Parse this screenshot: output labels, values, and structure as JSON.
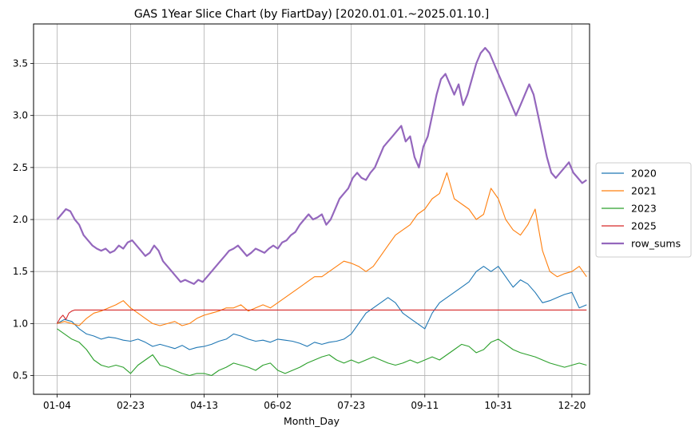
{
  "chart_data": {
    "type": "line",
    "title": "GAS 1Year Slice Chart (by FiartDay) [2020.01.01.~2025.01.10.]",
    "xlabel": "Month_Day",
    "ylabel": "",
    "x_tick_labels": [
      "01-04",
      "02-23",
      "04-13",
      "06-02",
      "07-23",
      "09-11",
      "10-31",
      "12-20"
    ],
    "x_tick_days": [
      0,
      50,
      100,
      150,
      200,
      250,
      300,
      350
    ],
    "xlim": [
      -16,
      362
    ],
    "ylim": [
      0.32,
      3.88
    ],
    "y_ticks": [
      0.5,
      1.0,
      1.5,
      2.0,
      2.5,
      3.0,
      3.5
    ],
    "y_tick_labels": [
      "0.5",
      "1.0",
      "1.5",
      "2.0",
      "2.5",
      "3.0",
      "3.5"
    ],
    "grid": true,
    "legend_position": "center-right",
    "series": [
      {
        "name": "2020",
        "color": "#1f77b4",
        "x": [
          0,
          5,
          10,
          15,
          20,
          25,
          30,
          35,
          40,
          45,
          50,
          55,
          60,
          65,
          70,
          75,
          80,
          85,
          90,
          95,
          100,
          105,
          110,
          115,
          120,
          125,
          130,
          135,
          140,
          145,
          150,
          155,
          160,
          165,
          170,
          175,
          180,
          185,
          190,
          195,
          200,
          205,
          210,
          215,
          220,
          225,
          230,
          235,
          240,
          245,
          250,
          255,
          260,
          265,
          270,
          275,
          280,
          285,
          290,
          295,
          300,
          305,
          310,
          315,
          320,
          325,
          330,
          335,
          340,
          345,
          350,
          355,
          360
        ],
        "y": [
          1.0,
          1.04,
          1.02,
          0.95,
          0.9,
          0.88,
          0.85,
          0.87,
          0.86,
          0.84,
          0.83,
          0.85,
          0.82,
          0.78,
          0.8,
          0.78,
          0.76,
          0.79,
          0.75,
          0.77,
          0.78,
          0.8,
          0.83,
          0.85,
          0.9,
          0.88,
          0.85,
          0.83,
          0.84,
          0.82,
          0.85,
          0.84,
          0.83,
          0.81,
          0.78,
          0.82,
          0.8,
          0.82,
          0.83,
          0.85,
          0.9,
          1.0,
          1.1,
          1.15,
          1.2,
          1.25,
          1.2,
          1.1,
          1.05,
          1.0,
          0.95,
          1.1,
          1.2,
          1.25,
          1.3,
          1.35,
          1.4,
          1.5,
          1.55,
          1.5,
          1.55,
          1.45,
          1.35,
          1.42,
          1.38,
          1.3,
          1.2,
          1.22,
          1.25,
          1.28,
          1.3,
          1.15,
          1.18
        ]
      },
      {
        "name": "2021",
        "color": "#ff7f0e",
        "x": [
          0,
          5,
          10,
          15,
          20,
          25,
          30,
          35,
          40,
          45,
          50,
          55,
          60,
          65,
          70,
          75,
          80,
          85,
          90,
          95,
          100,
          105,
          110,
          115,
          120,
          125,
          130,
          135,
          140,
          145,
          150,
          155,
          160,
          165,
          170,
          175,
          180,
          185,
          190,
          195,
          200,
          205,
          210,
          215,
          220,
          225,
          230,
          235,
          240,
          245,
          250,
          255,
          260,
          265,
          270,
          275,
          280,
          285,
          290,
          295,
          300,
          305,
          310,
          315,
          320,
          325,
          330,
          335,
          340,
          345,
          350,
          355,
          360
        ],
        "y": [
          1.0,
          1.02,
          1.0,
          0.98,
          1.05,
          1.1,
          1.12,
          1.15,
          1.18,
          1.22,
          1.15,
          1.1,
          1.05,
          1.0,
          0.98,
          1.0,
          1.02,
          0.98,
          1.0,
          1.05,
          1.08,
          1.1,
          1.12,
          1.15,
          1.15,
          1.18,
          1.12,
          1.15,
          1.18,
          1.15,
          1.2,
          1.25,
          1.3,
          1.35,
          1.4,
          1.45,
          1.45,
          1.5,
          1.55,
          1.6,
          1.58,
          1.55,
          1.5,
          1.55,
          1.65,
          1.75,
          1.85,
          1.9,
          1.95,
          2.05,
          2.1,
          2.2,
          2.25,
          2.45,
          2.2,
          2.15,
          2.1,
          2.0,
          2.05,
          2.3,
          2.2,
          2.0,
          1.9,
          1.85,
          1.95,
          2.1,
          1.7,
          1.5,
          1.45,
          1.48,
          1.5,
          1.55,
          1.45
        ]
      },
      {
        "name": "2023",
        "color": "#2ca02c",
        "x": [
          0,
          5,
          10,
          15,
          20,
          25,
          30,
          35,
          40,
          45,
          50,
          55,
          60,
          65,
          70,
          75,
          80,
          85,
          90,
          95,
          100,
          105,
          110,
          115,
          120,
          125,
          130,
          135,
          140,
          145,
          150,
          155,
          160,
          165,
          170,
          175,
          180,
          185,
          190,
          195,
          200,
          205,
          210,
          215,
          220,
          225,
          230,
          235,
          240,
          245,
          250,
          255,
          260,
          265,
          270,
          275,
          280,
          285,
          290,
          295,
          300,
          305,
          310,
          315,
          320,
          325,
          330,
          335,
          340,
          345,
          350,
          355,
          360
        ],
        "y": [
          0.95,
          0.9,
          0.85,
          0.82,
          0.75,
          0.65,
          0.6,
          0.58,
          0.6,
          0.58,
          0.52,
          0.6,
          0.65,
          0.7,
          0.6,
          0.58,
          0.55,
          0.52,
          0.5,
          0.52,
          0.52,
          0.5,
          0.55,
          0.58,
          0.62,
          0.6,
          0.58,
          0.55,
          0.6,
          0.62,
          0.55,
          0.52,
          0.55,
          0.58,
          0.62,
          0.65,
          0.68,
          0.7,
          0.65,
          0.62,
          0.65,
          0.62,
          0.65,
          0.68,
          0.65,
          0.62,
          0.6,
          0.62,
          0.65,
          0.62,
          0.65,
          0.68,
          0.65,
          0.7,
          0.75,
          0.8,
          0.78,
          0.72,
          0.75,
          0.82,
          0.85,
          0.8,
          0.75,
          0.72,
          0.7,
          0.68,
          0.65,
          0.62,
          0.6,
          0.58,
          0.6,
          0.62,
          0.6
        ]
      },
      {
        "name": "2025",
        "color": "#d62728",
        "x": [
          0,
          2,
          4,
          6,
          8,
          10,
          12,
          15,
          360
        ],
        "y": [
          1.0,
          1.05,
          1.08,
          1.04,
          1.1,
          1.12,
          1.13,
          1.13,
          1.13
        ]
      },
      {
        "name": "row_sums",
        "color": "#9467bd",
        "x": [
          0,
          3,
          6,
          9,
          12,
          15,
          18,
          21,
          24,
          27,
          30,
          33,
          36,
          39,
          42,
          45,
          48,
          51,
          54,
          57,
          60,
          63,
          66,
          69,
          72,
          75,
          78,
          81,
          84,
          87,
          90,
          93,
          96,
          99,
          102,
          105,
          108,
          111,
          114,
          117,
          120,
          123,
          126,
          129,
          132,
          135,
          138,
          141,
          144,
          147,
          150,
          153,
          156,
          159,
          162,
          165,
          168,
          171,
          174,
          177,
          180,
          183,
          186,
          189,
          192,
          195,
          198,
          201,
          204,
          207,
          210,
          213,
          216,
          219,
          222,
          225,
          228,
          231,
          234,
          237,
          240,
          243,
          246,
          249,
          252,
          255,
          258,
          261,
          264,
          267,
          270,
          273,
          276,
          279,
          282,
          285,
          288,
          291,
          294,
          297,
          300,
          303,
          306,
          309,
          312,
          315,
          318,
          321,
          324,
          327,
          330,
          333,
          336,
          339,
          342,
          345,
          348,
          351,
          354,
          357,
          360
        ],
        "y": [
          2.0,
          2.05,
          2.1,
          2.08,
          2.0,
          1.95,
          1.85,
          1.8,
          1.75,
          1.72,
          1.7,
          1.72,
          1.68,
          1.7,
          1.75,
          1.72,
          1.78,
          1.8,
          1.75,
          1.7,
          1.65,
          1.68,
          1.75,
          1.7,
          1.6,
          1.55,
          1.5,
          1.45,
          1.4,
          1.42,
          1.4,
          1.38,
          1.42,
          1.4,
          1.45,
          1.5,
          1.55,
          1.6,
          1.65,
          1.7,
          1.72,
          1.75,
          1.7,
          1.65,
          1.68,
          1.72,
          1.7,
          1.68,
          1.72,
          1.75,
          1.72,
          1.78,
          1.8,
          1.85,
          1.88,
          1.95,
          2.0,
          2.05,
          2.0,
          2.02,
          2.05,
          1.95,
          2.0,
          2.1,
          2.2,
          2.25,
          2.3,
          2.4,
          2.45,
          2.4,
          2.38,
          2.45,
          2.5,
          2.6,
          2.7,
          2.75,
          2.8,
          2.85,
          2.9,
          2.75,
          2.8,
          2.6,
          2.5,
          2.7,
          2.8,
          3.0,
          3.2,
          3.35,
          3.4,
          3.3,
          3.2,
          3.3,
          3.1,
          3.2,
          3.35,
          3.5,
          3.6,
          3.65,
          3.6,
          3.5,
          3.4,
          3.3,
          3.2,
          3.1,
          3.0,
          3.1,
          3.2,
          3.3,
          3.2,
          3.0,
          2.8,
          2.6,
          2.45,
          2.4,
          2.45,
          2.5,
          2.55,
          2.45,
          2.4,
          2.35,
          2.38
        ]
      }
    ]
  }
}
